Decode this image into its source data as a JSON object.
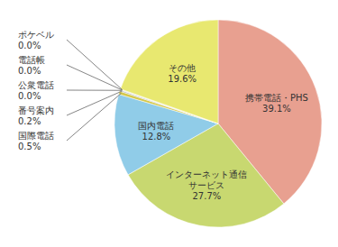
{
  "chart_data": {
    "type": "pie",
    "categories": [
      "携帯電話・PHS",
      "インターネット通信\nサービス",
      "国内電話",
      "国際電話",
      "番号案内",
      "公衆電話",
      "電話帳",
      "ポケベル",
      "その他"
    ],
    "values": [
      39.1,
      27.7,
      12.8,
      0.5,
      0.2,
      0.05,
      0.05,
      0.05,
      19.6
    ],
    "value_labels": [
      "39.1%",
      "27.7%",
      "12.8%",
      "0.5%",
      "0.2%",
      "0.0%",
      "0.0%",
      "0.0%",
      "19.6%"
    ],
    "colors": [
      "#e8a090",
      "#c8d870",
      "#90cce8",
      "#d4c84a",
      "#b8b8b8",
      "#88c890",
      "#c890b8",
      "#f0d070",
      "#e8e870"
    ],
    "data_labels": true
  }
}
